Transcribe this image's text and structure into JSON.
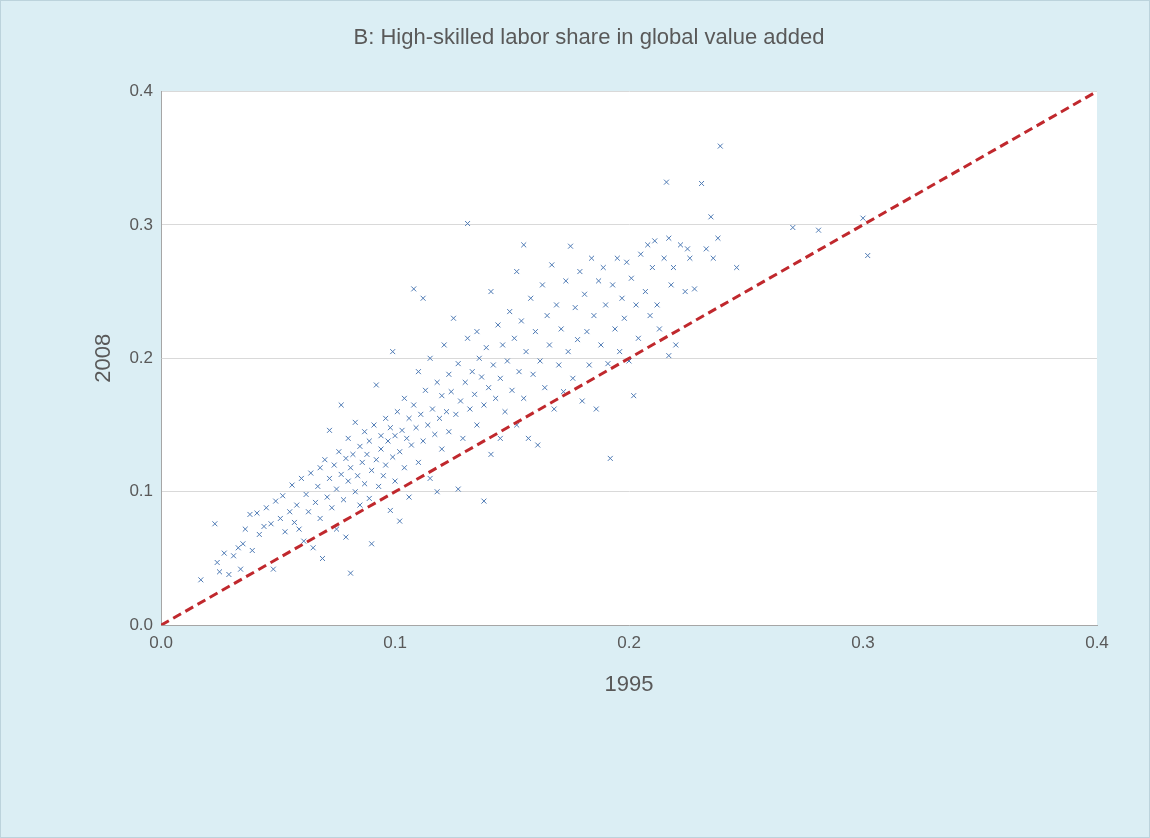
{
  "chart_data": {
    "type": "scatter",
    "title": "B: High-skilled labor share in global value added",
    "x_label": "1995",
    "y_label": "2008",
    "xlim": [
      0,
      0.4
    ],
    "ylim": [
      0,
      0.4
    ],
    "xticks": [
      {
        "value": 0,
        "label": "0.0"
      },
      0.1,
      0.2,
      0.3,
      0.4
    ],
    "yticks": [
      {
        "value": 0,
        "label": "0.0"
      },
      0.1,
      0.2,
      0.3,
      0.4
    ],
    "grid": "y",
    "series": [
      {
        "type": "scatter",
        "marker": "x",
        "color": "#4f7bb5",
        "x": [
          0.017,
          0.023,
          0.024,
          0.025,
          0.027,
          0.029,
          0.031,
          0.033,
          0.034,
          0.035,
          0.036,
          0.038,
          0.039,
          0.041,
          0.042,
          0.044,
          0.045,
          0.047,
          0.048,
          0.049,
          0.051,
          0.052,
          0.053,
          0.055,
          0.056,
          0.057,
          0.058,
          0.059,
          0.06,
          0.061,
          0.062,
          0.063,
          0.064,
          0.065,
          0.066,
          0.067,
          0.068,
          0.068,
          0.069,
          0.07,
          0.071,
          0.072,
          0.072,
          0.073,
          0.074,
          0.075,
          0.075,
          0.076,
          0.077,
          0.077,
          0.078,
          0.079,
          0.079,
          0.08,
          0.08,
          0.081,
          0.081,
          0.082,
          0.083,
          0.083,
          0.084,
          0.085,
          0.085,
          0.086,
          0.087,
          0.087,
          0.088,
          0.089,
          0.089,
          0.09,
          0.09,
          0.091,
          0.092,
          0.092,
          0.093,
          0.094,
          0.094,
          0.095,
          0.096,
          0.096,
          0.097,
          0.098,
          0.098,
          0.099,
          0.099,
          0.1,
          0.1,
          0.101,
          0.102,
          0.102,
          0.103,
          0.104,
          0.104,
          0.105,
          0.106,
          0.106,
          0.107,
          0.108,
          0.108,
          0.109,
          0.11,
          0.11,
          0.111,
          0.112,
          0.112,
          0.113,
          0.114,
          0.115,
          0.115,
          0.116,
          0.117,
          0.118,
          0.118,
          0.119,
          0.12,
          0.12,
          0.121,
          0.122,
          0.123,
          0.123,
          0.124,
          0.125,
          0.126,
          0.127,
          0.127,
          0.128,
          0.129,
          0.13,
          0.131,
          0.131,
          0.132,
          0.133,
          0.134,
          0.135,
          0.135,
          0.136,
          0.137,
          0.138,
          0.138,
          0.139,
          0.14,
          0.141,
          0.141,
          0.142,
          0.143,
          0.144,
          0.145,
          0.145,
          0.146,
          0.147,
          0.148,
          0.149,
          0.15,
          0.151,
          0.152,
          0.152,
          0.153,
          0.154,
          0.155,
          0.155,
          0.156,
          0.157,
          0.158,
          0.159,
          0.16,
          0.161,
          0.162,
          0.163,
          0.164,
          0.165,
          0.166,
          0.167,
          0.168,
          0.169,
          0.17,
          0.171,
          0.172,
          0.173,
          0.174,
          0.175,
          0.176,
          0.177,
          0.178,
          0.179,
          0.18,
          0.181,
          0.182,
          0.183,
          0.184,
          0.185,
          0.186,
          0.187,
          0.188,
          0.189,
          0.19,
          0.191,
          0.192,
          0.193,
          0.194,
          0.195,
          0.196,
          0.197,
          0.198,
          0.199,
          0.2,
          0.201,
          0.202,
          0.203,
          0.204,
          0.205,
          0.207,
          0.209,
          0.21,
          0.211,
          0.212,
          0.213,
          0.215,
          0.216,
          0.217,
          0.218,
          0.219,
          0.22,
          0.222,
          0.224,
          0.226,
          0.228,
          0.231,
          0.233,
          0.235,
          0.236,
          0.238,
          0.239,
          0.246,
          0.27,
          0.281,
          0.3,
          0.302,
          0.217,
          0.208,
          0.225
        ],
        "values": [
          0.034,
          0.076,
          0.047,
          0.04,
          0.054,
          0.038,
          0.052,
          0.058,
          0.042,
          0.061,
          0.072,
          0.083,
          0.056,
          0.084,
          0.068,
          0.074,
          0.088,
          0.076,
          0.042,
          0.093,
          0.08,
          0.097,
          0.07,
          0.085,
          0.105,
          0.077,
          0.09,
          0.072,
          0.11,
          0.063,
          0.098,
          0.085,
          0.114,
          0.058,
          0.092,
          0.104,
          0.08,
          0.118,
          0.05,
          0.124,
          0.096,
          0.11,
          0.146,
          0.088,
          0.12,
          0.102,
          0.072,
          0.13,
          0.113,
          0.165,
          0.094,
          0.125,
          0.066,
          0.108,
          0.14,
          0.118,
          0.039,
          0.128,
          0.1,
          0.152,
          0.112,
          0.134,
          0.09,
          0.122,
          0.145,
          0.106,
          0.128,
          0.095,
          0.138,
          0.116,
          0.061,
          0.15,
          0.124,
          0.18,
          0.104,
          0.142,
          0.132,
          0.112,
          0.155,
          0.12,
          0.138,
          0.086,
          0.148,
          0.126,
          0.205,
          0.142,
          0.108,
          0.16,
          0.13,
          0.078,
          0.146,
          0.118,
          0.17,
          0.14,
          0.155,
          0.096,
          0.135,
          0.165,
          0.252,
          0.148,
          0.122,
          0.19,
          0.158,
          0.138,
          0.245,
          0.176,
          0.15,
          0.11,
          0.2,
          0.162,
          0.143,
          0.182,
          0.1,
          0.155,
          0.172,
          0.132,
          0.21,
          0.16,
          0.145,
          0.188,
          0.175,
          0.23,
          0.158,
          0.102,
          0.196,
          0.168,
          0.14,
          0.182,
          0.301,
          0.215,
          0.162,
          0.19,
          0.173,
          0.22,
          0.15,
          0.2,
          0.186,
          0.093,
          0.165,
          0.208,
          0.178,
          0.25,
          0.128,
          0.195,
          0.17,
          0.225,
          0.185,
          0.14,
          0.21,
          0.16,
          0.198,
          0.235,
          0.176,
          0.215,
          0.15,
          0.265,
          0.19,
          0.228,
          0.285,
          0.17,
          0.205,
          0.14,
          0.245,
          0.188,
          0.22,
          0.135,
          0.198,
          0.255,
          0.178,
          0.232,
          0.21,
          0.27,
          0.162,
          0.24,
          0.195,
          0.222,
          0.175,
          0.258,
          0.205,
          0.284,
          0.185,
          0.238,
          0.214,
          0.265,
          0.168,
          0.248,
          0.22,
          0.195,
          0.275,
          0.232,
          0.162,
          0.258,
          0.21,
          0.268,
          0.24,
          0.196,
          0.125,
          0.255,
          0.222,
          0.275,
          0.205,
          0.245,
          0.23,
          0.272,
          0.198,
          0.26,
          0.172,
          0.24,
          0.215,
          0.278,
          0.25,
          0.232,
          0.268,
          0.288,
          0.24,
          0.222,
          0.275,
          0.332,
          0.29,
          0.255,
          0.268,
          0.21,
          0.285,
          0.25,
          0.275,
          0.252,
          0.331,
          0.282,
          0.306,
          0.275,
          0.29,
          0.359,
          0.268,
          0.298,
          0.296,
          0.305,
          0.277,
          0.202,
          0.285,
          0.282
        ]
      },
      {
        "type": "line",
        "line_style": "dashed",
        "color": "#c0282d",
        "x": [
          0,
          0.4
        ],
        "values": [
          0,
          0.4
        ]
      }
    ]
  }
}
